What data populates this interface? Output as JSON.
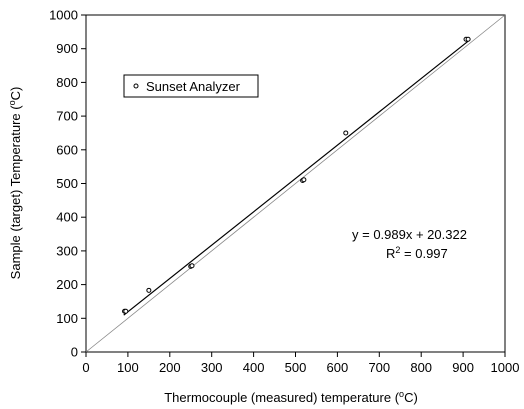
{
  "chart_data": {
    "type": "scatter",
    "title": "",
    "xlabel_prefix": "Thermocouple (measured) temperature (",
    "xlabel_sup": "o",
    "xlabel_suffix": "C)",
    "ylabel_prefix": "Sample (target) Temperature (",
    "ylabel_sup": "o",
    "ylabel_suffix": "C)",
    "xlim": [
      0,
      1000
    ],
    "ylim": [
      0,
      1000
    ],
    "xticks": [
      "0",
      "100",
      "200",
      "300",
      "400",
      "500",
      "600",
      "700",
      "800",
      "900",
      "1000"
    ],
    "yticks": [
      "0",
      "100",
      "200",
      "300",
      "400",
      "500",
      "600",
      "700",
      "800",
      "900",
      "1000"
    ],
    "grid": false,
    "legend_position": "upper-left",
    "series": [
      {
        "name": "Sunset Analyzer",
        "marker": "open-circle",
        "points": [
          {
            "x": 92,
            "y": 121
          },
          {
            "x": 95,
            "y": 121
          },
          {
            "x": 150,
            "y": 183
          },
          {
            "x": 250,
            "y": 254
          },
          {
            "x": 253,
            "y": 256
          },
          {
            "x": 517,
            "y": 509
          },
          {
            "x": 520,
            "y": 511
          },
          {
            "x": 620,
            "y": 650
          },
          {
            "x": 907,
            "y": 928
          },
          {
            "x": 912,
            "y": 928
          }
        ]
      }
    ],
    "fit_line": {
      "slope": 0.989,
      "intercept": 20.322,
      "x_start": 90,
      "x_end": 915
    },
    "identity_line": {
      "from": [
        0,
        0
      ],
      "to": [
        1000,
        1000
      ]
    },
    "annotations": {
      "equation": "y = 0.989x + 20.322",
      "r2_prefix": "R",
      "r2_sup": "2",
      "r2_suffix": " = 0.997"
    },
    "colors": {
      "axis": "#000000",
      "fit": "#000000",
      "identity": "#888888",
      "marker": "#000000"
    }
  }
}
